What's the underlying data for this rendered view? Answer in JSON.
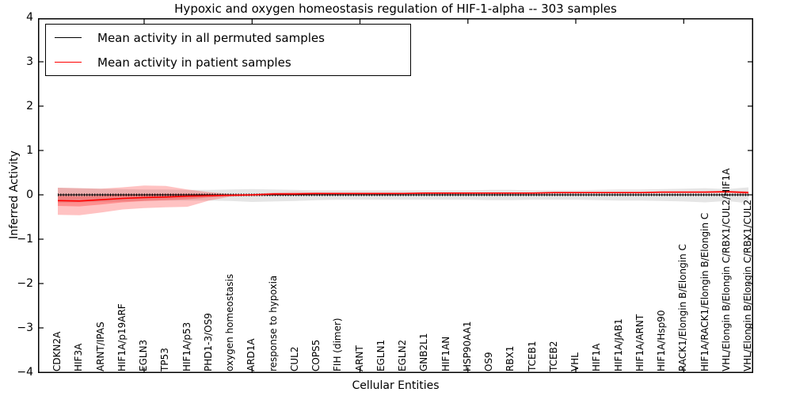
{
  "title": "Hypoxic and oxygen homeostasis regulation of HIF-1-alpha -- 303 samples",
  "legend": {
    "items": [
      {
        "label": "Mean activity in all permuted samples",
        "color": "#000000"
      },
      {
        "label": "Mean activity in patient samples",
        "color": "#ff0000"
      }
    ],
    "position": "upper left"
  },
  "colors": {
    "patient_line": "#ff0000",
    "permuted_line": "#000000",
    "patient_band": "rgba(255,0,0,0.24)",
    "patient_band_inner": "rgba(255,0,0,0.26)",
    "permuted_band": "rgba(0,0,0,0.10)",
    "frame": "#000000"
  },
  "chart_data": {
    "type": "line",
    "title": "Hypoxic and oxygen homeostasis regulation of HIF-1-alpha -- 303 samples",
    "xlabel": "Cellular Entities",
    "ylabel": "Inferred Activity",
    "ylim": [
      -4,
      4
    ],
    "grid": false,
    "legend_position": "upper left",
    "yticks": [
      {
        "label": "4",
        "value": 4
      },
      {
        "label": "3",
        "value": 3
      },
      {
        "label": "2",
        "value": 2
      },
      {
        "label": "1",
        "value": 1
      },
      {
        "label": "0",
        "value": 0
      },
      {
        "label": "−1",
        "value": -1
      },
      {
        "label": "−2",
        "value": -2
      },
      {
        "label": "−3",
        "value": -3
      },
      {
        "label": "−4",
        "value": -4
      }
    ],
    "xtick_marker_indices": [
      4,
      9,
      14,
      19,
      24,
      29
    ],
    "ytick_marker_values": [
      -3,
      -2,
      -1,
      0,
      1,
      2,
      3
    ],
    "categories": [
      "CDKN2A",
      "HIF3A",
      "ARNT/IPAS",
      "HIF1A/p19ARF",
      "EGLN3",
      "TP53",
      "HIF1A/p53",
      "PHD1-3/OS9",
      "oxygen homeostasis",
      "ARD1A",
      "response to hypoxia",
      "CUL2",
      "COPS5",
      "FIH (dimer)",
      "ARNT",
      "EGLN1",
      "EGLN2",
      "GNB2L1",
      "HIF1AN",
      "HSP90AA1",
      "OS9",
      "RBX1",
      "TCEB1",
      "TCEB2",
      "VHL",
      "HIF1A",
      "HIF1A/JAB1",
      "HIF1A/ARNT",
      "HIF1A/Hsp90",
      "RACK1/Elongin B/Elongin C",
      "HIF1A/RACK1/Elongin B/Elongin C",
      "VHL/Elongin B/Elongin C/RBX1/CUL2/HIF1A",
      "VHL/Elongin B/Elongin C/RBX1/CUL2"
    ],
    "series": [
      {
        "name": "Mean activity in all permuted samples",
        "color": "#000000",
        "style": "solid-with-tick-markers",
        "values": [
          0,
          0,
          0,
          0,
          0,
          0,
          0,
          0,
          0,
          0,
          0,
          0,
          0,
          0,
          0,
          0,
          0,
          0,
          0,
          0,
          0,
          0,
          0,
          0,
          0,
          0,
          0,
          0,
          0,
          0,
          0,
          0,
          0
        ]
      },
      {
        "name": "Mean activity in patient samples",
        "color": "#ff0000",
        "style": "solid",
        "values": [
          -0.13,
          -0.14,
          -0.11,
          -0.08,
          -0.06,
          -0.05,
          -0.03,
          -0.02,
          -0.01,
          0.0,
          0.02,
          0.02,
          0.03,
          0.03,
          0.03,
          0.03,
          0.03,
          0.04,
          0.04,
          0.04,
          0.04,
          0.04,
          0.04,
          0.05,
          0.05,
          0.05,
          0.05,
          0.05,
          0.06,
          0.06,
          0.06,
          0.07,
          0.05
        ]
      }
    ],
    "bands": [
      {
        "name": "permuted-samples-range",
        "color": "rgba(0,0,0,0.10)",
        "upper": [
          0.16,
          0.15,
          0.14,
          0.13,
          0.12,
          0.12,
          0.11,
          0.11,
          0.12,
          0.13,
          0.12,
          0.11,
          0.1,
          0.1,
          0.1,
          0.1,
          0.1,
          0.1,
          0.1,
          0.1,
          0.11,
          0.11,
          0.1,
          0.1,
          0.1,
          0.11,
          0.12,
          0.12,
          0.13,
          0.14,
          0.15,
          0.13,
          0.17
        ],
        "lower": [
          -0.18,
          -0.17,
          -0.16,
          -0.15,
          -0.14,
          -0.13,
          -0.13,
          -0.13,
          -0.14,
          -0.16,
          -0.15,
          -0.14,
          -0.12,
          -0.11,
          -0.11,
          -0.11,
          -0.11,
          -0.11,
          -0.11,
          -0.11,
          -0.12,
          -0.12,
          -0.11,
          -0.11,
          -0.11,
          -0.12,
          -0.13,
          -0.13,
          -0.14,
          -0.15,
          -0.17,
          -0.14,
          -0.19
        ]
      },
      {
        "name": "patient-samples-range-outer",
        "color": "rgba(255,0,0,0.24)",
        "upper": [
          0.16,
          0.15,
          0.14,
          0.17,
          0.21,
          0.2,
          0.12,
          0.06,
          0.02,
          0.02,
          0.05,
          0.06,
          0.05,
          0.04,
          0.04,
          0.04,
          0.04,
          0.05,
          0.05,
          0.05,
          0.05,
          0.05,
          0.05,
          0.06,
          0.06,
          0.06,
          0.06,
          0.06,
          0.07,
          0.07,
          0.08,
          0.09,
          0.08
        ],
        "lower": [
          -0.45,
          -0.46,
          -0.4,
          -0.33,
          -0.3,
          -0.28,
          -0.27,
          -0.13,
          -0.04,
          -0.03,
          -0.02,
          -0.01,
          0.0,
          0.01,
          0.01,
          0.01,
          0.02,
          0.02,
          0.02,
          0.02,
          0.03,
          0.03,
          0.03,
          0.03,
          0.03,
          0.04,
          0.04,
          0.04,
          0.04,
          0.04,
          0.04,
          0.04,
          0.02
        ],
        "inner_upper": [
          -0.02,
          -0.03,
          -0.02,
          0.0,
          0.01,
          0.02,
          0.02,
          0.02,
          0.0,
          0.01,
          0.03,
          0.03,
          0.04,
          0.04,
          0.04,
          0.04,
          0.04,
          0.05,
          0.05,
          0.05,
          0.05,
          0.05,
          0.05,
          0.06,
          0.06,
          0.06,
          0.06,
          0.06,
          0.07,
          0.07,
          0.07,
          0.08,
          0.06
        ],
        "inner_lower": [
          -0.25,
          -0.26,
          -0.22,
          -0.17,
          -0.14,
          -0.12,
          -0.1,
          -0.06,
          -0.02,
          -0.01,
          0.01,
          0.01,
          0.02,
          0.02,
          0.02,
          0.02,
          0.02,
          0.03,
          0.03,
          0.03,
          0.03,
          0.03,
          0.03,
          0.04,
          0.04,
          0.04,
          0.04,
          0.04,
          0.05,
          0.05,
          0.05,
          0.06,
          0.04
        ]
      }
    ]
  }
}
